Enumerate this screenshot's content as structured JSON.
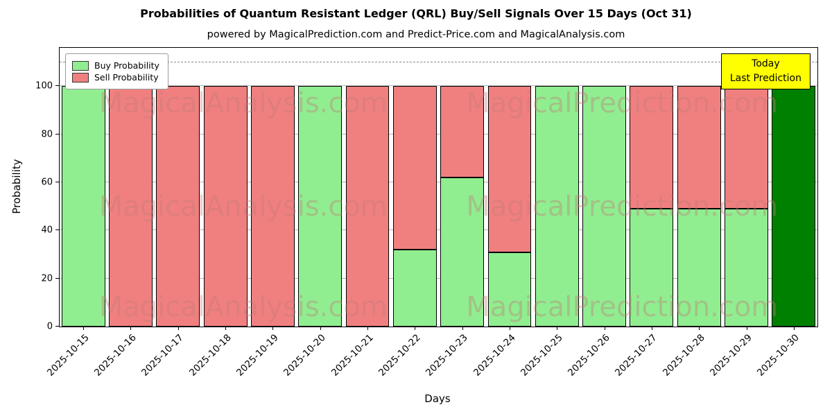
{
  "title": "Probabilities of Quantum Resistant Ledger (QRL) Buy/Sell Signals Over 15 Days (Oct 31)",
  "subtitle": "powered by MagicalPrediction.com and Predict-Price.com and MagicalAnalysis.com",
  "xlabel": "Days",
  "ylabel": "Probability",
  "legend": {
    "buy": "Buy Probability",
    "sell": "Sell Probability"
  },
  "annotation": {
    "line1": "Today",
    "line2": "Last Prediction"
  },
  "watermarks": [
    "MagicalAnalysis.com",
    "MagicalPrediction.com"
  ],
  "colors": {
    "buy": "#90EE90",
    "sell": "#F08080",
    "today": "#008000",
    "annotation_bg": "#FFFF00",
    "grid": "#b4b4b4",
    "edge": "#000000"
  },
  "chart_data": {
    "type": "bar",
    "stacked": true,
    "title": "Probabilities of Quantum Resistant Ledger (QRL) Buy/Sell Signals Over 15 Days (Oct 31)",
    "xlabel": "Days",
    "ylabel": "Probability",
    "categories": [
      "2025-10-15",
      "2025-10-16",
      "2025-10-17",
      "2025-10-18",
      "2025-10-19",
      "2025-10-20",
      "2025-10-21",
      "2025-10-22",
      "2025-10-23",
      "2025-10-24",
      "2025-10-25",
      "2025-10-26",
      "2025-10-27",
      "2025-10-28",
      "2025-10-29",
      "2025-10-30"
    ],
    "series": [
      {
        "name": "Buy Probability",
        "values": [
          100,
          0,
          0,
          0,
          0,
          100,
          0,
          32,
          62,
          31,
          100,
          100,
          49,
          49,
          49,
          100
        ]
      },
      {
        "name": "Sell Probability",
        "values": [
          0,
          100,
          100,
          100,
          100,
          0,
          100,
          68,
          38,
          69,
          0,
          0,
          51,
          51,
          51,
          0
        ]
      }
    ],
    "today_index": 15,
    "ylim": [
      0,
      116
    ],
    "yticks": [
      0,
      20,
      40,
      60,
      80,
      100
    ],
    "dashed_line_y": 110,
    "grid": true,
    "legend_position": "upper left"
  }
}
